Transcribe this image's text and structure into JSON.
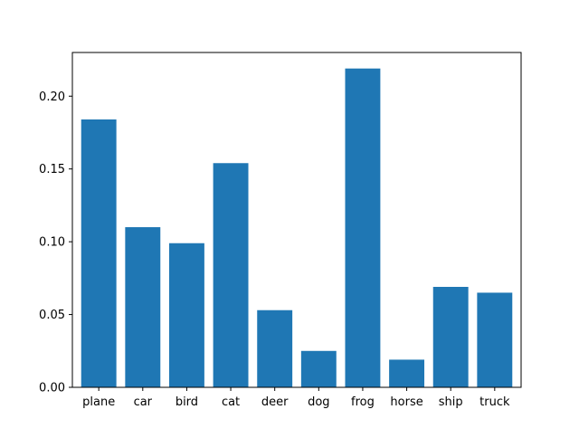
{
  "chart_data": {
    "type": "bar",
    "title": "",
    "xlabel": "",
    "ylabel": "",
    "categories": [
      "plane",
      "car",
      "bird",
      "cat",
      "deer",
      "dog",
      "frog",
      "horse",
      "ship",
      "truck"
    ],
    "values": [
      0.184,
      0.11,
      0.099,
      0.154,
      0.053,
      0.025,
      0.219,
      0.019,
      0.069,
      0.065
    ],
    "ylim": [
      0,
      0.23
    ],
    "yticks": [
      0.0,
      0.05,
      0.1,
      0.15,
      0.2
    ],
    "ytick_labels": [
      "0.00",
      "0.05",
      "0.10",
      "0.15",
      "0.20"
    ],
    "grid": false,
    "bar_color": "#1f77b4"
  }
}
